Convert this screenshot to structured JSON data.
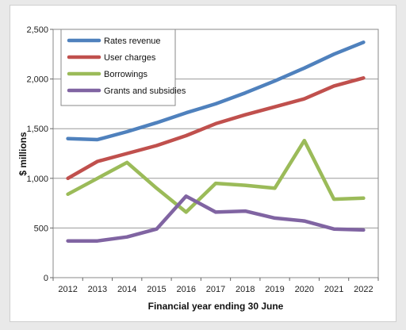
{
  "chart_data": {
    "type": "line",
    "title": "",
    "xlabel": "Financial year ending 30 June",
    "ylabel": "$ millions",
    "categories": [
      "2012",
      "2013",
      "2014",
      "2015",
      "2016",
      "2017",
      "2018",
      "2019",
      "2020",
      "2021",
      "2022"
    ],
    "ylim": [
      0,
      2500
    ],
    "yticks": [
      0,
      500,
      1000,
      1500,
      2000,
      2500
    ],
    "ytick_labels": [
      "0",
      "500",
      "1,000",
      "1,500",
      "2,000",
      "2,500"
    ],
    "grid": true,
    "legend_position": "top-left",
    "series": [
      {
        "name": "Rates revenue",
        "color": "#4f81bd",
        "values": [
          1400,
          1390,
          1470,
          1560,
          1660,
          1750,
          1860,
          1980,
          2110,
          2250,
          2370
        ]
      },
      {
        "name": "User charges",
        "color": "#c0504d",
        "values": [
          1000,
          1170,
          1250,
          1330,
          1430,
          1550,
          1640,
          1720,
          1800,
          1930,
          2010
        ]
      },
      {
        "name": "Borrowings",
        "color": "#9bbb59",
        "values": [
          840,
          1000,
          1160,
          900,
          660,
          950,
          930,
          900,
          1380,
          790,
          800
        ]
      },
      {
        "name": "Grants and subsidies",
        "color": "#8064a2",
        "values": [
          370,
          370,
          410,
          490,
          820,
          660,
          670,
          600,
          570,
          490,
          480
        ]
      }
    ]
  }
}
